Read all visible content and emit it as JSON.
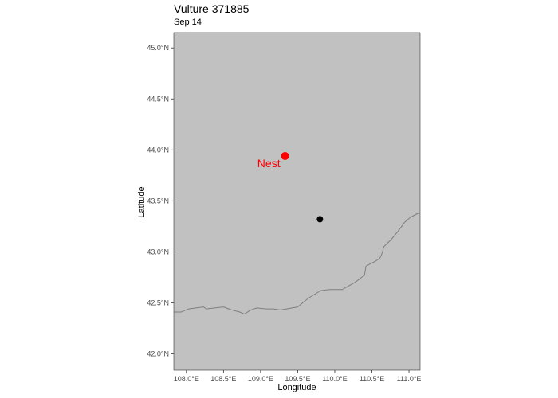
{
  "chart_data": {
    "type": "scatter",
    "title": "Vulture 371885",
    "subtitle": "Sep 14",
    "xlabel": "Longitude",
    "ylabel": "Latitude",
    "xlim": [
      107.83,
      111.15
    ],
    "ylim": [
      41.84,
      45.15
    ],
    "x_ticks": [
      108.0,
      108.5,
      109.0,
      109.5,
      110.0,
      110.5,
      111.0
    ],
    "x_tick_labels": [
      "108.0°E",
      "108.5°E",
      "109.0°E",
      "109.5°E",
      "110.0°E",
      "110.5°E",
      "111.0°E"
    ],
    "y_ticks": [
      42.0,
      42.5,
      43.0,
      43.5,
      44.0,
      44.5,
      45.0
    ],
    "y_tick_labels": [
      "42.0°N",
      "42.5°N",
      "43.0°N",
      "43.5°N",
      "44.0°N",
      "44.5°N",
      "45.0°N"
    ],
    "grid": false,
    "points": [
      {
        "x": 109.33,
        "y": 43.94,
        "color": "#ff0000",
        "label": "Nest"
      },
      {
        "x": 109.8,
        "y": 43.32,
        "color": "#000000",
        "label": ""
      }
    ],
    "boundary": [
      [
        107.83,
        42.41
      ],
      [
        107.93,
        42.41
      ],
      [
        108.03,
        42.44
      ],
      [
        108.13,
        42.45
      ],
      [
        108.23,
        42.46
      ],
      [
        108.27,
        42.44
      ],
      [
        108.38,
        42.45
      ],
      [
        108.5,
        42.46
      ],
      [
        108.61,
        42.43
      ],
      [
        108.72,
        42.41
      ],
      [
        108.78,
        42.39
      ],
      [
        108.87,
        42.43
      ],
      [
        108.95,
        42.45
      ],
      [
        109.07,
        42.44
      ],
      [
        109.17,
        42.44
      ],
      [
        109.27,
        42.43
      ],
      [
        109.35,
        42.44
      ],
      [
        109.5,
        42.46
      ],
      [
        109.65,
        42.55
      ],
      [
        109.81,
        42.62
      ],
      [
        109.93,
        42.63
      ],
      [
        110.1,
        42.63
      ],
      [
        110.27,
        42.7
      ],
      [
        110.4,
        42.77
      ],
      [
        110.42,
        42.86
      ],
      [
        110.55,
        42.91
      ],
      [
        110.61,
        42.94
      ],
      [
        110.64,
        42.99
      ],
      [
        110.66,
        43.05
      ],
      [
        110.76,
        43.12
      ],
      [
        110.85,
        43.2
      ],
      [
        110.94,
        43.29
      ],
      [
        111.02,
        43.34
      ],
      [
        111.1,
        43.37
      ],
      [
        111.15,
        43.38
      ]
    ],
    "colors": {
      "land": "#c1c1c1",
      "border": "#7f7f7f",
      "nest": "#ff0000",
      "point": "#000000"
    }
  }
}
